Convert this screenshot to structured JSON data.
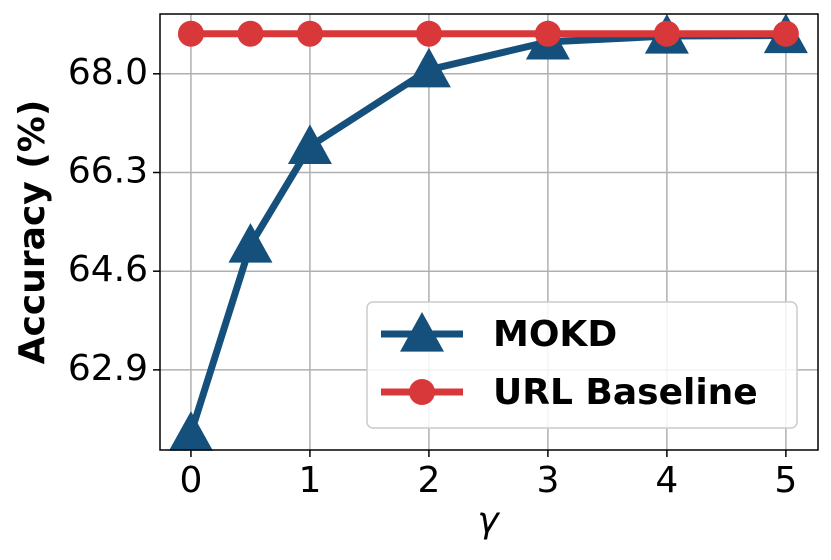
{
  "chart_data": {
    "type": "line",
    "xlabel": "γ",
    "ylabel": "Accuracy (%)",
    "x": [
      0,
      0.5,
      1,
      2,
      3,
      4,
      5
    ],
    "series": [
      {
        "name": "MOKD",
        "color": "#15507c",
        "marker": "triangle",
        "values": [
          61.81,
          65.05,
          66.75,
          68.07,
          68.55,
          68.65,
          68.66
        ]
      },
      {
        "name": "URL Baseline",
        "color": "#d9383a",
        "marker": "circle",
        "values": [
          68.69,
          68.69,
          68.69,
          68.69,
          68.69,
          68.69,
          68.69
        ]
      }
    ],
    "xlim": [
      -0.26,
      5.27
    ],
    "xticks": [
      0,
      1,
      2,
      3,
      4,
      5
    ],
    "ylim": [
      61.52,
      69.03
    ],
    "yticks": [
      {
        "value": 62.9,
        "label": "62.9"
      },
      {
        "value": 64.6,
        "label": "64.6"
      },
      {
        "value": 66.3,
        "label": "66.3"
      },
      {
        "value": 68.0,
        "label": "68.0"
      }
    ],
    "grid": true,
    "legend": "lower right"
  }
}
